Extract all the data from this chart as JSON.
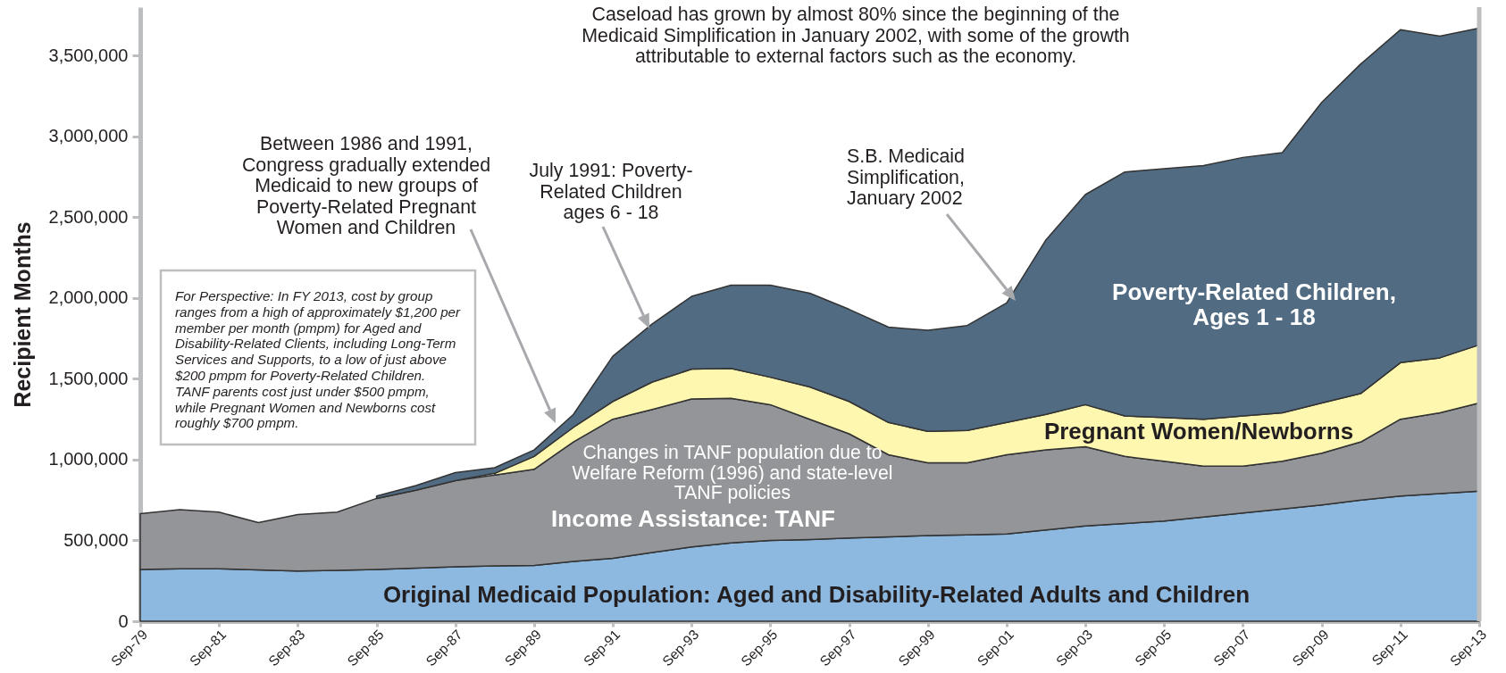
{
  "chart_data": {
    "type": "area",
    "stacked": true,
    "ylabel": "Recipient Months",
    "x": [
      "1979-09",
      "1980-09",
      "1981-09",
      "1982-09",
      "1983-09",
      "1984-09",
      "1985-09",
      "1986-09",
      "1987-09",
      "1988-09",
      "1989-09",
      "1990-09",
      "1991-09",
      "1992-09",
      "1993-09",
      "1994-09",
      "1995-09",
      "1996-09",
      "1997-09",
      "1998-09",
      "1999-09",
      "2000-09",
      "2001-09",
      "2002-09",
      "2003-09",
      "2004-09",
      "2005-09",
      "2006-09",
      "2007-09",
      "2008-09",
      "2009-09",
      "2010-09",
      "2011-09",
      "2012-09",
      "2013-09"
    ],
    "series": [
      {
        "name": "Original Medicaid Population: Aged and Disability-Related Adults and Children",
        "color": "#8db9e0",
        "values": [
          320000,
          325000,
          325000,
          318000,
          310000,
          315000,
          320000,
          328000,
          337000,
          342000,
          345000,
          370000,
          390000,
          425000,
          460000,
          485000,
          500000,
          505000,
          515000,
          522000,
          530000,
          535000,
          540000,
          565000,
          590000,
          605000,
          620000,
          645000,
          670000,
          695000,
          720000,
          750000,
          775000,
          790000,
          805000
        ]
      },
      {
        "name": "Income Assistance: TANF",
        "color": "#939598",
        "values": [
          345000,
          365000,
          350000,
          292000,
          350000,
          360000,
          440000,
          482000,
          533000,
          563000,
          595000,
          740000,
          860000,
          885000,
          915000,
          895000,
          840000,
          745000,
          645000,
          508000,
          450000,
          445000,
          490000,
          495000,
          490000,
          415000,
          370000,
          315000,
          290000,
          295000,
          320000,
          360000,
          475000,
          500000,
          545000
        ]
      },
      {
        "name": "Pregnant Women/Newborns",
        "color": "#fdf7b0",
        "values": [
          null,
          null,
          null,
          null,
          null,
          null,
          null,
          null,
          null,
          10000,
          80000,
          90000,
          110000,
          170000,
          185000,
          185000,
          170000,
          200000,
          200000,
          200000,
          195000,
          200000,
          200000,
          220000,
          260000,
          250000,
          270000,
          290000,
          310000,
          300000,
          310000,
          300000,
          350000,
          340000,
          360000
        ]
      },
      {
        "name": "Poverty-Related Children, Ages 1 - 18",
        "color": "#516b82",
        "values": [
          null,
          null,
          null,
          null,
          null,
          null,
          15000,
          30000,
          50000,
          35000,
          40000,
          80000,
          280000,
          360000,
          450000,
          515000,
          570000,
          580000,
          570000,
          590000,
          625000,
          650000,
          740000,
          1080000,
          1300000,
          1510000,
          1540000,
          1570000,
          1600000,
          1610000,
          1860000,
          2040000,
          2060000,
          1990000,
          1960000
        ]
      }
    ],
    "xlim": [
      "1979-09",
      "2013-09"
    ],
    "xticks": [
      {
        "value": "1979-09",
        "label": "Sep-79"
      },
      {
        "value": "1981-09",
        "label": "Sep-81"
      },
      {
        "value": "1983-09",
        "label": "Sep-83"
      },
      {
        "value": "1985-09",
        "label": "Sep-85"
      },
      {
        "value": "1987-09",
        "label": "Sep-87"
      },
      {
        "value": "1989-09",
        "label": "Sep-89"
      },
      {
        "value": "1991-09",
        "label": "Sep-91"
      },
      {
        "value": "1993-09",
        "label": "Sep-93"
      },
      {
        "value": "1995-09",
        "label": "Sep-95"
      },
      {
        "value": "1997-09",
        "label": "Sep-97"
      },
      {
        "value": "1999-09",
        "label": "Sep-99"
      },
      {
        "value": "2001-09",
        "label": "Sep-01"
      },
      {
        "value": "2003-09",
        "label": "Sep-03"
      },
      {
        "value": "2005-09",
        "label": "Sep-05"
      },
      {
        "value": "2007-09",
        "label": "Sep-07"
      },
      {
        "value": "2009-09",
        "label": "Sep-09"
      },
      {
        "value": "2011-09",
        "label": "Sep-11"
      },
      {
        "value": "2013-09",
        "label": "Sep-13"
      }
    ],
    "ylim": [
      0,
      3800000
    ],
    "yticks": [
      {
        "value": 0,
        "label": "0"
      },
      {
        "value": 500000,
        "label": "500,000"
      },
      {
        "value": 1000000,
        "label": "1,000,000"
      },
      {
        "value": 1500000,
        "label": "1,500,000"
      },
      {
        "value": 2000000,
        "label": "2,000,000"
      },
      {
        "value": 2500000,
        "label": "2,500,000"
      },
      {
        "value": 3000000,
        "label": "3,000,000"
      },
      {
        "value": 3500000,
        "label": "3,500,000"
      }
    ],
    "annotations": [
      "Caseload has grown by almost 80% since the beginning of the Medicaid Simplification in January 2002, with some of the growth attributable to external factors such as the economy.",
      "Between 1986 and 1991, Congress gradually extended Medicaid to new groups of Poverty-Related Pregnant Women and Children",
      "July 1991: Poverty-Related Children ages 6 - 18",
      "S.B. Medicaid Simplification, January 2002",
      "Changes in TANF population due to Welfare Reform (1996) and state-level TANF policies",
      "For Perspective: In FY 2013, cost by group ranges from a high of approximately $1,200 per member per month (pmpm) for Aged and Disability-Related Clients, including Long-Term Services and Supports, to a low of just above $200 pmpm for Poverty-Related Children. TANF parents cost just under $500 pmpm, while Pregnant Women and Newborns cost roughly $700 pmpm."
    ]
  }
}
